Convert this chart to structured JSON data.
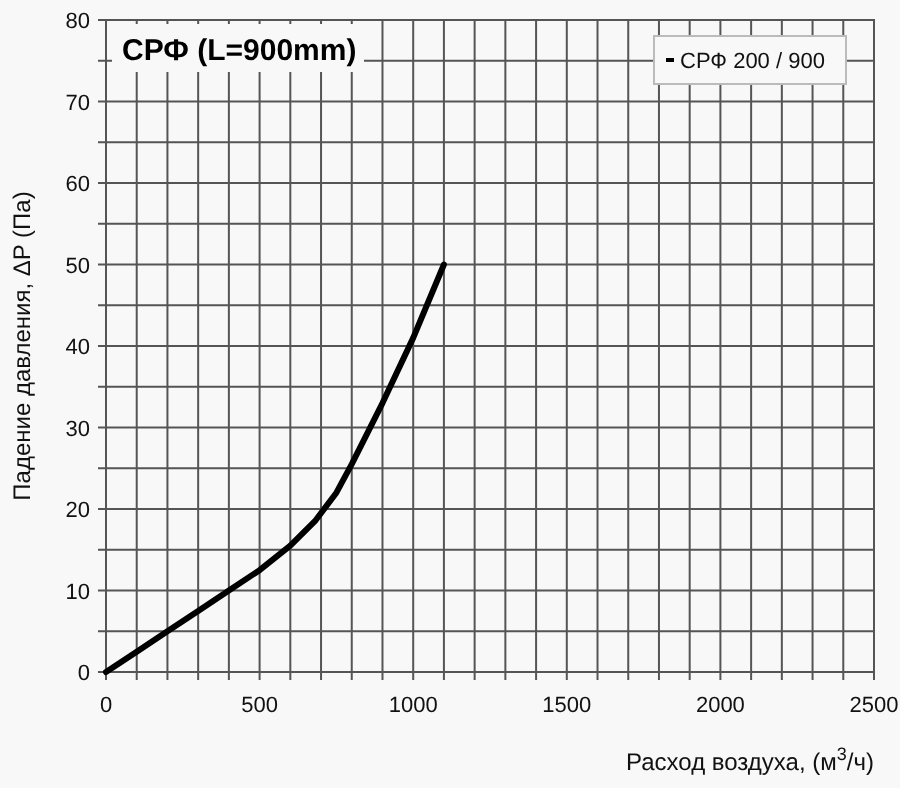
{
  "chart_data": {
    "type": "line",
    "title": "СРФ (L=900mm)",
    "xlabel": "Расход воздуха, (м$^{3}$/ч)",
    "ylabel": "Падение давления, ΔP (Па)",
    "x": [
      0,
      100,
      200,
      300,
      400,
      500,
      600,
      680,
      750,
      800,
      900,
      1000,
      1100
    ],
    "series": [
      {
        "name": "СРФ 200 / 900",
        "color": "#000000",
        "values": [
          0,
          2.5,
          5,
          7.5,
          10,
          12.5,
          15.5,
          18.5,
          22,
          25.5,
          33,
          41,
          50
        ]
      }
    ],
    "xlim": [
      0,
      2500
    ],
    "xticks": [
      0,
      {
        "value": 100,
        "label": null
      },
      {
        "value": 200,
        "label": null
      },
      {
        "value": 300,
        "label": null
      },
      {
        "value": 400,
        "label": null
      },
      500,
      {
        "value": 600,
        "label": null
      },
      {
        "value": 700,
        "label": null
      },
      {
        "value": 800,
        "label": null
      },
      {
        "value": 900,
        "label": null
      },
      1000,
      {
        "value": 1100,
        "label": null
      },
      {
        "value": 1200,
        "label": null
      },
      {
        "value": 1300,
        "label": null
      },
      {
        "value": 1400,
        "label": null
      },
      1500,
      {
        "value": 1600,
        "label": null
      },
      {
        "value": 1700,
        "label": null
      },
      {
        "value": 1800,
        "label": null
      },
      {
        "value": 1900,
        "label": null
      },
      2000,
      {
        "value": 2100,
        "label": null
      },
      {
        "value": 2200,
        "label": null
      },
      {
        "value": 2300,
        "label": null
      },
      {
        "value": 2400,
        "label": null
      },
      2500
    ],
    "ylim": [
      0,
      80
    ],
    "yticks": [
      0,
      {
        "value": 5,
        "label": null
      },
      10,
      {
        "value": 15,
        "label": null
      },
      20,
      {
        "value": 25,
        "label": null
      },
      30,
      {
        "value": 35,
        "label": null
      },
      40,
      {
        "value": 45,
        "label": null
      },
      50,
      {
        "value": 55,
        "label": null
      },
      60,
      {
        "value": 65,
        "label": null
      },
      70,
      {
        "value": 75,
        "label": null
      },
      80
    ],
    "grid": true,
    "legend": "top right",
    "marker": "none",
    "line_style": "solid"
  }
}
